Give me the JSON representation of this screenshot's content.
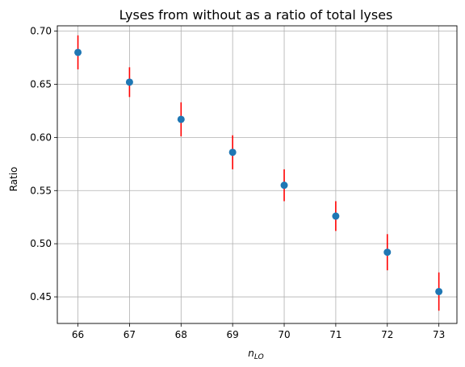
{
  "chart_data": {
    "type": "scatter",
    "title": "Lyses from without as a ratio of total lyses",
    "xlabel": {
      "base": "n",
      "subscript": "LO"
    },
    "ylabel": "Ratio",
    "xlim": [
      65.6,
      73.35
    ],
    "ylim": [
      0.425,
      0.705
    ],
    "x_ticks": [
      66,
      67,
      68,
      69,
      70,
      71,
      72,
      73
    ],
    "x_tick_labels": [
      "66",
      "67",
      "68",
      "69",
      "70",
      "71",
      "72",
      "73"
    ],
    "y_ticks": [
      0.45,
      0.5,
      0.55,
      0.6,
      0.65,
      0.7
    ],
    "y_tick_labels": [
      "0.45",
      "0.50",
      "0.55",
      "0.60",
      "0.65",
      "0.70"
    ],
    "grid": true,
    "series": [
      {
        "x": [
          66,
          67,
          68,
          69,
          70,
          71,
          72,
          73
        ],
        "y": [
          0.68,
          0.652,
          0.617,
          0.586,
          0.555,
          0.526,
          0.492,
          0.455
        ],
        "yerr": [
          0.016,
          0.014,
          0.016,
          0.016,
          0.015,
          0.014,
          0.017,
          0.018
        ],
        "marker_color": "#1f77b4",
        "errorbar_color": "#ff0000"
      }
    ]
  }
}
